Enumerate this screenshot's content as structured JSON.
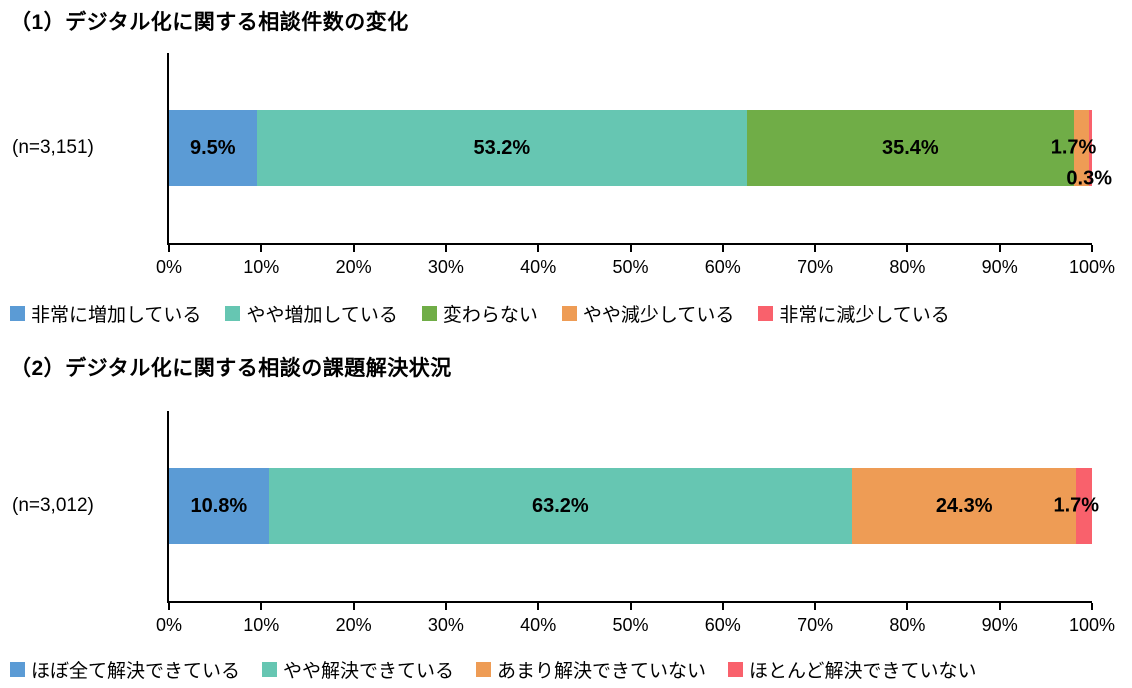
{
  "colors": {
    "blue": "#5B9BD5",
    "teal": "#66C6B2",
    "green": "#70AD47",
    "orange": "#EE9C55",
    "red": "#F9616C",
    "axis": "#000000"
  },
  "chart_data": [
    {
      "type": "bar",
      "orientation": "horizontal",
      "stacked": true,
      "title": "（1）デジタル化に関する相談件数の変化",
      "category_label": "(n=3,151)",
      "xlim": [
        0,
        100
      ],
      "grid": false,
      "legend_position": "bottom",
      "x_ticks": [
        "0%",
        "10%",
        "20%",
        "30%",
        "40%",
        "50%",
        "60%",
        "70%",
        "80%",
        "90%",
        "100%"
      ],
      "series": [
        {
          "name": "非常に増加している",
          "value": 9.5,
          "label": "9.5%",
          "color": "#5B9BD5",
          "label_mode": "inside"
        },
        {
          "name": "やや増加している",
          "value": 53.2,
          "label": "53.2%",
          "color": "#66C6B2",
          "label_mode": "inside"
        },
        {
          "name": "変わらない",
          "value": 35.4,
          "label": "35.4%",
          "color": "#70AD47",
          "label_mode": "inside"
        },
        {
          "name": "やや減少している",
          "value": 1.7,
          "label": "1.7%",
          "color": "#EE9C55",
          "label_mode": "callout",
          "callout_row": 1
        },
        {
          "name": "非常に減少している",
          "value": 0.3,
          "label": "0.3%",
          "color": "#F9616C",
          "label_mode": "callout",
          "callout_row": 2
        }
      ]
    },
    {
      "type": "bar",
      "orientation": "horizontal",
      "stacked": true,
      "title": "（2）デジタル化に関する相談の課題解決状況",
      "category_label": "(n=3,012)",
      "xlim": [
        0,
        100
      ],
      "grid": false,
      "legend_position": "bottom",
      "x_ticks": [
        "0%",
        "10%",
        "20%",
        "30%",
        "40%",
        "50%",
        "60%",
        "70%",
        "80%",
        "90%",
        "100%"
      ],
      "series": [
        {
          "name": "ほぼ全て解決できている",
          "value": 10.8,
          "label": "10.8%",
          "color": "#5B9BD5",
          "label_mode": "inside"
        },
        {
          "name": "やや解決できている",
          "value": 63.2,
          "label": "63.2%",
          "color": "#66C6B2",
          "label_mode": "inside"
        },
        {
          "name": "あまり解決できていない",
          "value": 24.3,
          "label": "24.3%",
          "color": "#EE9C55",
          "label_mode": "inside"
        },
        {
          "name": "ほとんど解決できていない",
          "value": 1.7,
          "label": "1.7%",
          "color": "#F9616C",
          "label_mode": "callout",
          "callout_row": 1
        }
      ]
    }
  ]
}
